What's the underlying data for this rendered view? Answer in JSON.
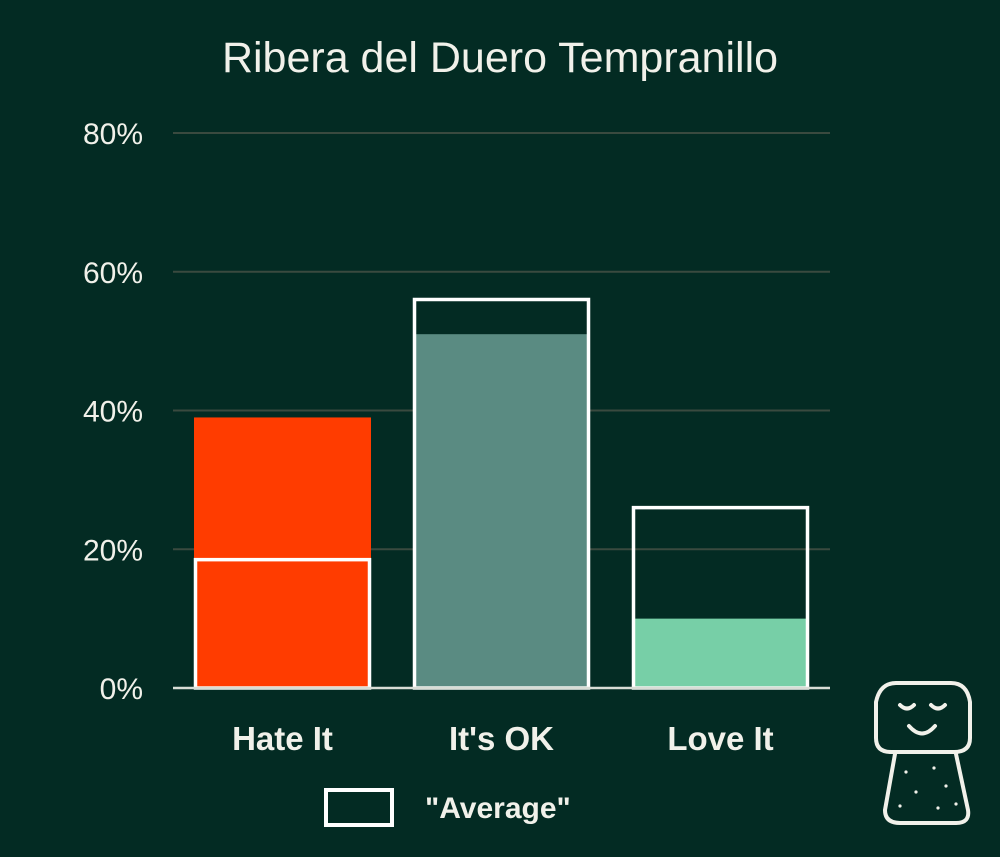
{
  "chart_data": {
    "type": "bar",
    "title": "Ribera del Duero Tempranillo",
    "categories": [
      "Hate It",
      "It's OK",
      "Love It"
    ],
    "series": [
      {
        "values": [
          39,
          51,
          10
        ]
      },
      {
        "name": "\"Average\"",
        "values": [
          18.5,
          56,
          26
        ]
      }
    ],
    "bar_colors": [
      "#ff3c00",
      "#5a8b82",
      "#77cfa7"
    ],
    "average_outline_color": "#ffffff",
    "ylim": [
      0,
      80
    ],
    "yticks": [
      0,
      20,
      40,
      60,
      80
    ],
    "ytick_labels": [
      "0%",
      "20%",
      "40%",
      "60%",
      "80%"
    ],
    "grid": true,
    "legend_position": "bottom-center",
    "colors": {
      "background": "#032b23",
      "text": "#f1f1ea",
      "grid": "#3a4a3f",
      "axis": "#d9ddd6",
      "mascot": "#f1f1ea"
    }
  },
  "mascot": {
    "icon": "cork-face-icon"
  }
}
